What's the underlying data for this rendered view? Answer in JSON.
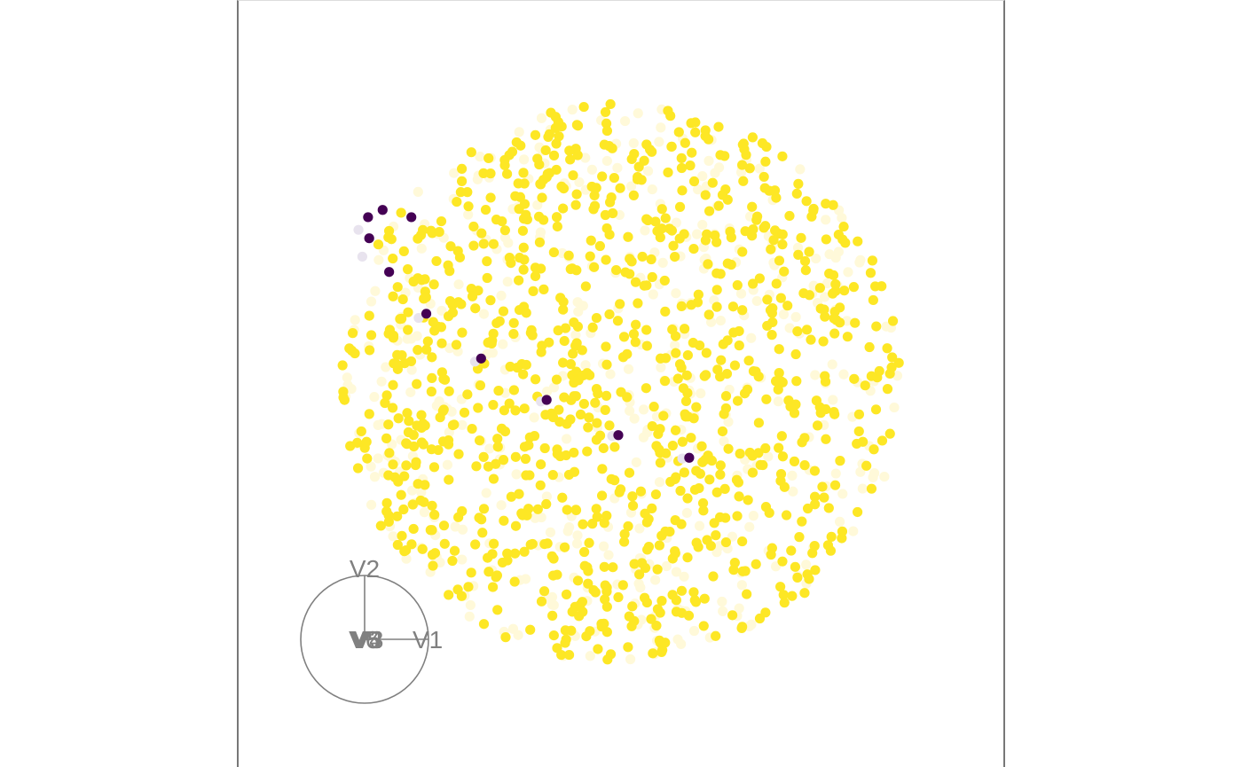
{
  "chart_data": {
    "type": "scatter",
    "title": "",
    "description_panel": "grand tour projection (tourr-style) of a multivariate point cloud",
    "point_colors": {
      "main": "#FDE725",
      "faint": "#FFF9D9",
      "ghost": "#E8E3EE",
      "outlier": "#440154"
    },
    "frame_color": "#777777",
    "axis_color": "#808080",
    "projection_range": [
      -1,
      1
    ],
    "cloud": {
      "center": [
        0.0,
        0.0
      ],
      "radius": 0.73,
      "n_main": 1000,
      "n_faint": 420,
      "seed": 7
    },
    "outliers": [
      {
        "x": -0.66,
        "y": 0.433
      },
      {
        "x": -0.622,
        "y": 0.452
      },
      {
        "x": -0.547,
        "y": 0.433
      },
      {
        "x": -0.657,
        "y": 0.378
      },
      {
        "x": -0.605,
        "y": 0.29
      },
      {
        "x": -0.508,
        "y": 0.181
      },
      {
        "x": -0.365,
        "y": 0.064
      },
      {
        "x": -0.194,
        "y": -0.044
      },
      {
        "x": -0.007,
        "y": -0.136
      },
      {
        "x": 0.178,
        "y": -0.195
      }
    ],
    "ghosts": [
      {
        "x": -0.685,
        "y": 0.4
      },
      {
        "x": -0.675,
        "y": 0.33
      },
      {
        "x": -0.528,
        "y": 0.17
      },
      {
        "x": -0.381,
        "y": 0.056
      },
      {
        "x": -0.209,
        "y": -0.048
      },
      {
        "x": -0.023,
        "y": -0.138
      },
      {
        "x": 0.16,
        "y": -0.197
      }
    ],
    "axes_guide": {
      "circle_radius_units": 1,
      "variables": [
        {
          "name": "V1",
          "dx": 1.0,
          "dy": 0.0
        },
        {
          "name": "V2",
          "dx": 0.0,
          "dy": 1.0
        },
        {
          "name": "V3",
          "dx": 0.06,
          "dy": 0.0
        },
        {
          "name": "V4",
          "dx": 0.05,
          "dy": 0.01
        },
        {
          "name": "V5",
          "dx": 0.02,
          "dy": 0.0
        },
        {
          "name": "V6",
          "dx": -0.01,
          "dy": 0.0
        }
      ]
    }
  }
}
